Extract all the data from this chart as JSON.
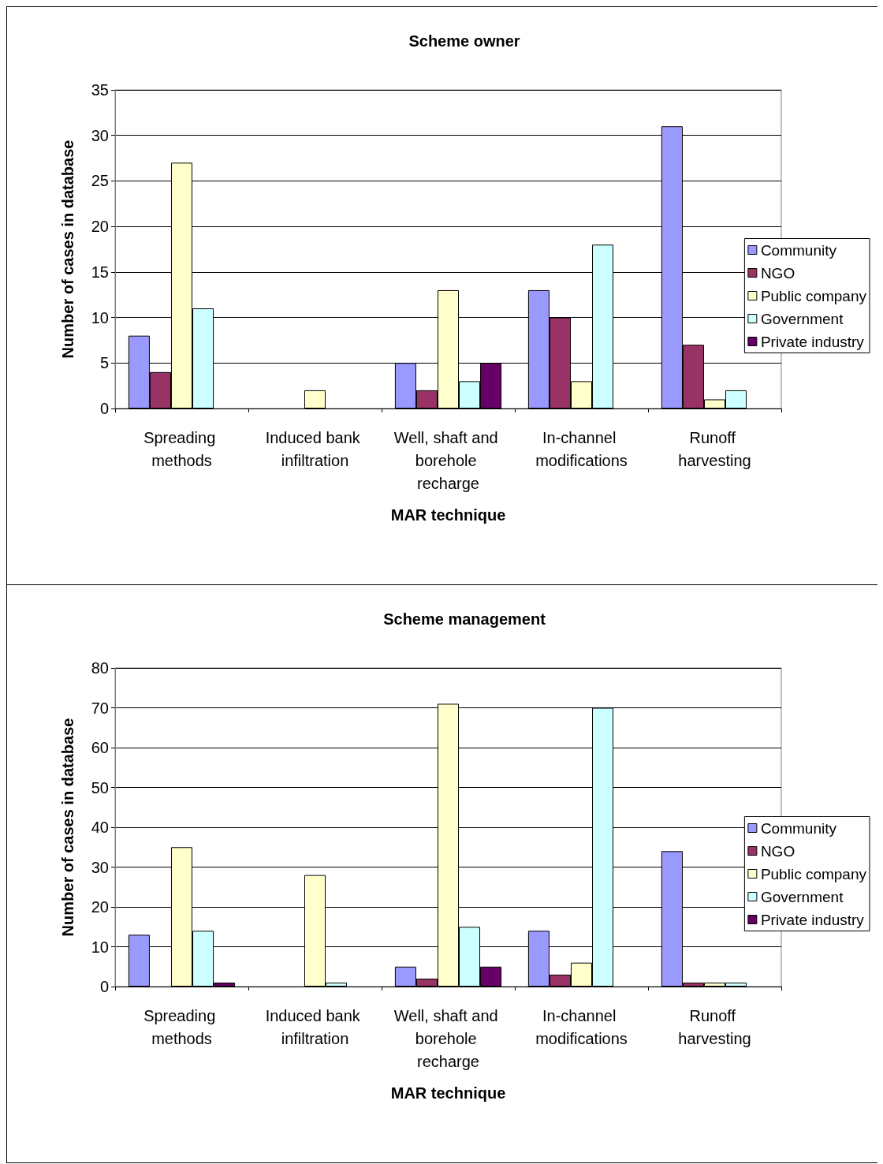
{
  "chart_data": [
    {
      "type": "bar",
      "title": "Scheme owner",
      "xlabel": "MAR technique",
      "ylabel": "Number of cases in database",
      "categories": [
        "Spreading methods",
        "Induced bank infiltration",
        "Well, shaft and borehole recharge",
        "In-channel modifications",
        "Runoff harvesting"
      ],
      "series": [
        {
          "name": "Community",
          "color": "#9999ff",
          "values": [
            8,
            null,
            5,
            13,
            31
          ]
        },
        {
          "name": "NGO",
          "color": "#993366",
          "values": [
            4,
            null,
            2,
            10,
            7
          ]
        },
        {
          "name": "Public company",
          "color": "#ffffcc",
          "values": [
            27,
            2,
            13,
            3,
            1
          ]
        },
        {
          "name": "Government",
          "color": "#ccffff",
          "values": [
            11,
            null,
            3,
            18,
            2
          ]
        },
        {
          "name": "Private industry",
          "color": "#660066",
          "values": [
            null,
            null,
            5,
            null,
            null
          ]
        }
      ],
      "ylim": [
        0,
        35
      ],
      "yticks": [
        0,
        5,
        10,
        15,
        20,
        25,
        30,
        35
      ],
      "grid": "y",
      "legend": "right"
    },
    {
      "type": "bar",
      "title": "Scheme management",
      "xlabel": "MAR technique",
      "ylabel": "Number of cases in database",
      "categories": [
        "Spreading methods",
        "Induced bank infiltration",
        "Well, shaft and borehole recharge",
        "In-channel modifications",
        "Runoff harvesting"
      ],
      "series": [
        {
          "name": "Community",
          "color": "#9999ff",
          "values": [
            13,
            null,
            5,
            14,
            34
          ]
        },
        {
          "name": "NGO",
          "color": "#993366",
          "values": [
            null,
            null,
            2,
            3,
            1
          ]
        },
        {
          "name": "Public company",
          "color": "#ffffcc",
          "values": [
            35,
            28,
            71,
            6,
            1
          ]
        },
        {
          "name": "Government",
          "color": "#ccffff",
          "values": [
            14,
            1,
            15,
            70,
            1
          ]
        },
        {
          "name": "Private industry",
          "color": "#660066",
          "values": [
            1,
            null,
            5,
            null,
            null
          ]
        }
      ],
      "ylim": [
        0,
        80
      ],
      "yticks": [
        0,
        10,
        20,
        30,
        40,
        50,
        60,
        70,
        80
      ],
      "grid": "y",
      "legend": "right"
    }
  ]
}
